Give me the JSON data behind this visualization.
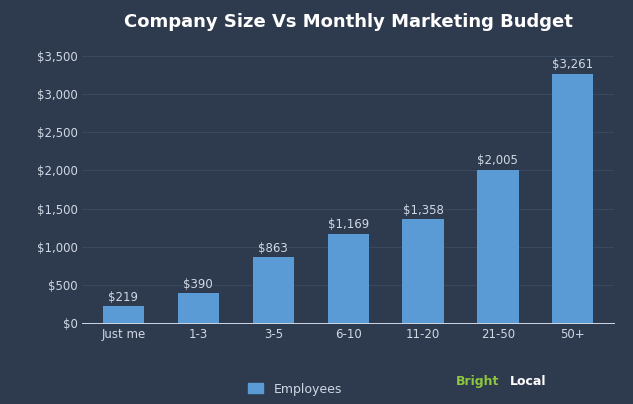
{
  "title": "Company Size Vs Monthly Marketing Budget",
  "categories": [
    "Just me",
    "1-3",
    "3-5",
    "6-10",
    "11-20",
    "21-50",
    "50+"
  ],
  "values": [
    219,
    390,
    863,
    1169,
    1358,
    2005,
    3261
  ],
  "labels": [
    "$219",
    "$390",
    "$863",
    "$1,169",
    "$1,358",
    "$2,005",
    "$3,261"
  ],
  "bar_color": "#5b9bd5",
  "background_color": "#2e3a4e",
  "text_color": "#d0d8e4",
  "grid_color": "#3a4d63",
  "legend_label": "Employees",
  "brightlocal_green": "#8dc63f",
  "brightlocal_white": "#ffffff",
  "ylim": [
    0,
    3700
  ],
  "yticks": [
    0,
    500,
    1000,
    1500,
    2000,
    2500,
    3000,
    3500
  ],
  "title_fontsize": 13,
  "label_fontsize": 8.5,
  "tick_fontsize": 8.5,
  "legend_fontsize": 9,
  "brightlocal_fontsize": 9
}
